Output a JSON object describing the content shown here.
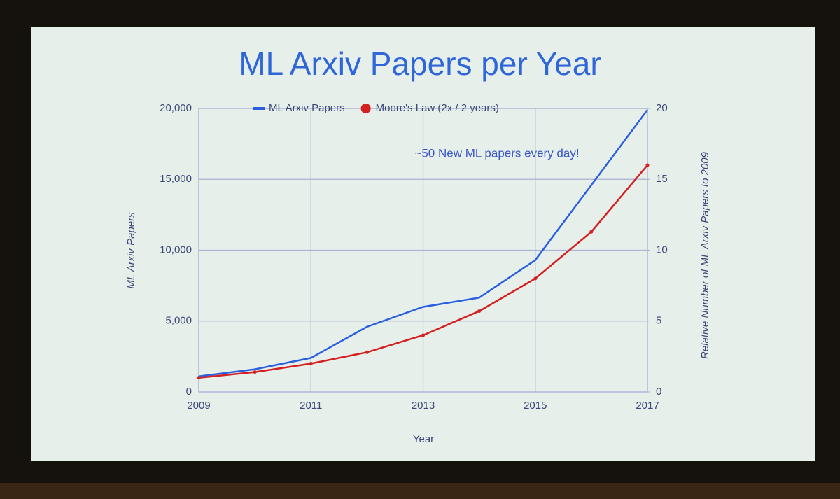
{
  "chart_data": {
    "type": "line",
    "title": "ML Arxiv Papers per Year",
    "x_label": "Year",
    "y_label": "ML Arxiv Papers",
    "y2_label": "Relative Number of ML Arxiv Papers  to 2009",
    "annotation": "~50 New ML papers every day!",
    "x": [
      2009,
      2010,
      2011,
      2012,
      2013,
      2014,
      2015,
      2016,
      2017
    ],
    "xlim": [
      2009,
      2017
    ],
    "xticks": [
      2009,
      2011,
      2013,
      2015,
      2017
    ],
    "ylim": [
      0,
      20000
    ],
    "yticks": [
      0,
      {
        "value": 5000,
        "label": "5,000"
      },
      {
        "value": 10000,
        "label": "10,000"
      },
      {
        "value": 15000,
        "label": "15,000"
      },
      {
        "value": 20000,
        "label": "20,000"
      }
    ],
    "y2lim": [
      0,
      20
    ],
    "y2ticks": [
      0,
      5,
      10,
      15,
      20
    ],
    "grid": true,
    "legend": "top",
    "series": [
      {
        "name": "ML Arxiv Papers",
        "color": "#2a5fe0",
        "values": [
          1100,
          1600,
          2400,
          4600,
          6000,
          6650,
          9300,
          14600,
          19900
        ]
      },
      {
        "name": "Moore's Law (2x / 2 years)",
        "color": "#d42020",
        "axis": "y2",
        "markers": true,
        "values": [
          1,
          1.4,
          2,
          2.8,
          4,
          5.7,
          8,
          11.3,
          16
        ]
      }
    ]
  }
}
